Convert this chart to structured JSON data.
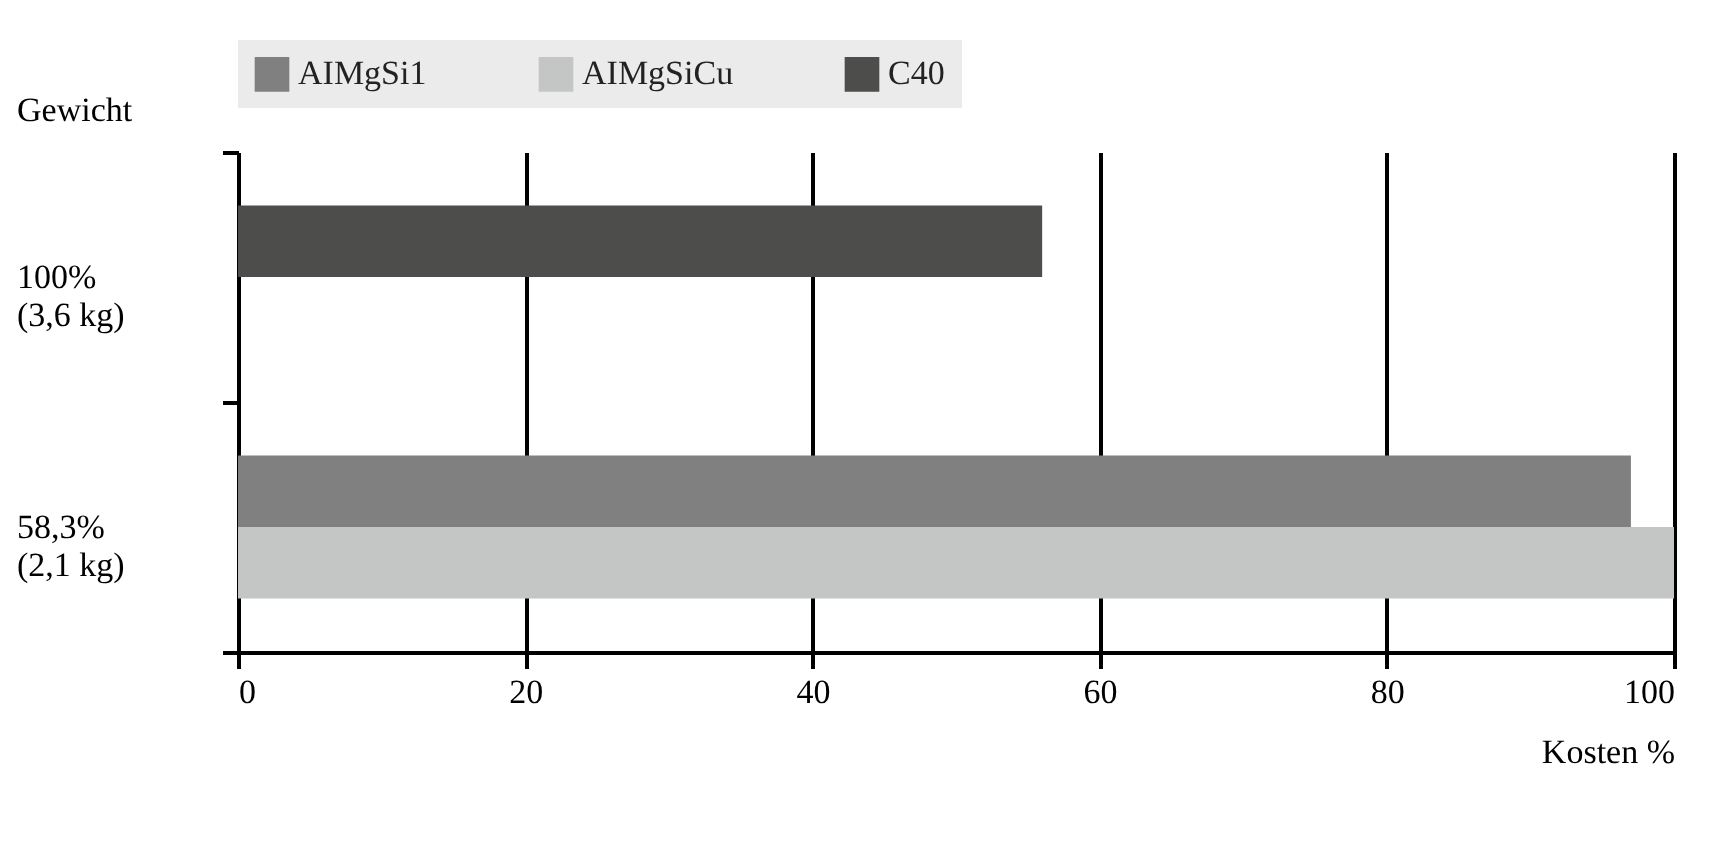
{
  "chart_data": {
    "type": "bar",
    "orientation": "horizontal",
    "categories": [
      "100%\n(3,6 kg)",
      "58,3%\n(2,1 kg)"
    ],
    "series": [
      {
        "name": "AIMgSi1",
        "color": "#808080",
        "values": [
          null,
          97
        ]
      },
      {
        "name": "AIMgSiCu",
        "color": "#c4c6c5",
        "values": [
          null,
          100
        ]
      },
      {
        "name": "C40",
        "color": "#4d4d4b",
        "values": [
          56,
          null
        ]
      }
    ],
    "xlabel": "Kosten %",
    "ylabel": "Gewicht",
    "xlim": [
      0,
      100
    ],
    "xticks": [
      0,
      20,
      40,
      60,
      80,
      100
    ],
    "grid": "x",
    "legend": "top"
  }
}
